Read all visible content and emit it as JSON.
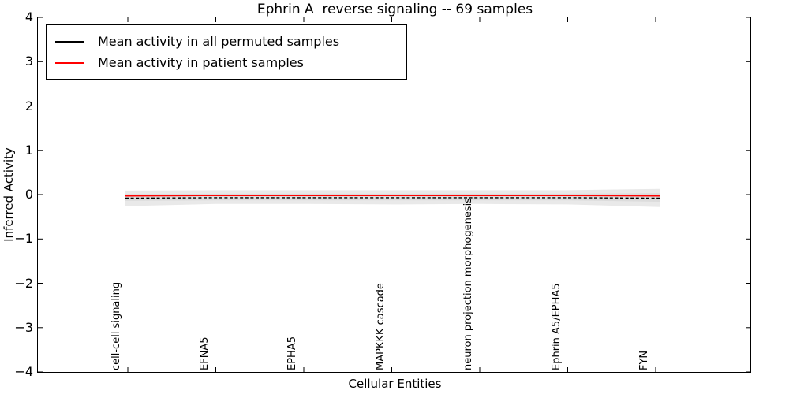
{
  "figure": {
    "title": "Ephrin A  reverse signaling -- 69 samples",
    "xlabel": "Cellular Entities",
    "ylabel": "Inferred Activity"
  },
  "legend": {
    "position": "upper left",
    "items": [
      {
        "label": "Mean activity in all permuted samples",
        "color": "#000000",
        "style": "solid"
      },
      {
        "label": "Mean activity in patient samples",
        "color": "#ff0000",
        "style": "solid"
      }
    ]
  },
  "chart_data": {
    "type": "line",
    "title": "Ephrin A  reverse signaling -- 69 samples",
    "xlabel": "Cellular Entities",
    "ylabel": "Inferred Activity",
    "ylim": [
      -4,
      4
    ],
    "yticks": [
      {
        "value": 4,
        "label": "4"
      },
      {
        "value": 3,
        "label": "3"
      },
      {
        "value": 2,
        "label": "2"
      },
      {
        "value": 1,
        "label": "1"
      },
      {
        "value": 0,
        "label": "0"
      },
      {
        "value": -1,
        "label": "−1"
      },
      {
        "value": -2,
        "label": "−2"
      },
      {
        "value": -3,
        "label": "−3"
      },
      {
        "value": -4,
        "label": "−4"
      }
    ],
    "categories": [
      "cell-cell signaling",
      "EFNA5",
      "EPHA5",
      "MAPKKK cascade",
      "neuron projection morphogenesis",
      "Ephrin A5/EPHA5",
      "FYN"
    ],
    "grid": false,
    "legend_position": "upper left",
    "bands": [
      {
        "name": "permuted-std-outer",
        "color": "#e9e9e9",
        "upper": [
          0.09,
          0.1,
          0.1,
          0.1,
          0.1,
          0.1,
          0.13
        ],
        "lower": [
          -0.26,
          -0.21,
          -0.21,
          -0.22,
          -0.21,
          -0.22,
          -0.28
        ]
      },
      {
        "name": "permuted-std-inner",
        "color": "#dcdcdc",
        "upper": [
          0.01,
          0.02,
          0.02,
          0.02,
          0.02,
          0.02,
          0.03
        ],
        "lower": [
          -0.14,
          -0.13,
          -0.13,
          -0.13,
          -0.13,
          -0.13,
          -0.16
        ]
      }
    ],
    "series": [
      {
        "name": "Mean activity in all permuted samples",
        "color": "#000000",
        "style": "dashed",
        "values": [
          -0.08,
          -0.07,
          -0.07,
          -0.07,
          -0.07,
          -0.07,
          -0.08
        ]
      },
      {
        "name": "Mean activity in patient samples",
        "color": "#ff0000",
        "style": "solid",
        "values": [
          -0.03,
          -0.02,
          -0.02,
          -0.02,
          -0.02,
          -0.02,
          -0.03
        ]
      }
    ]
  }
}
